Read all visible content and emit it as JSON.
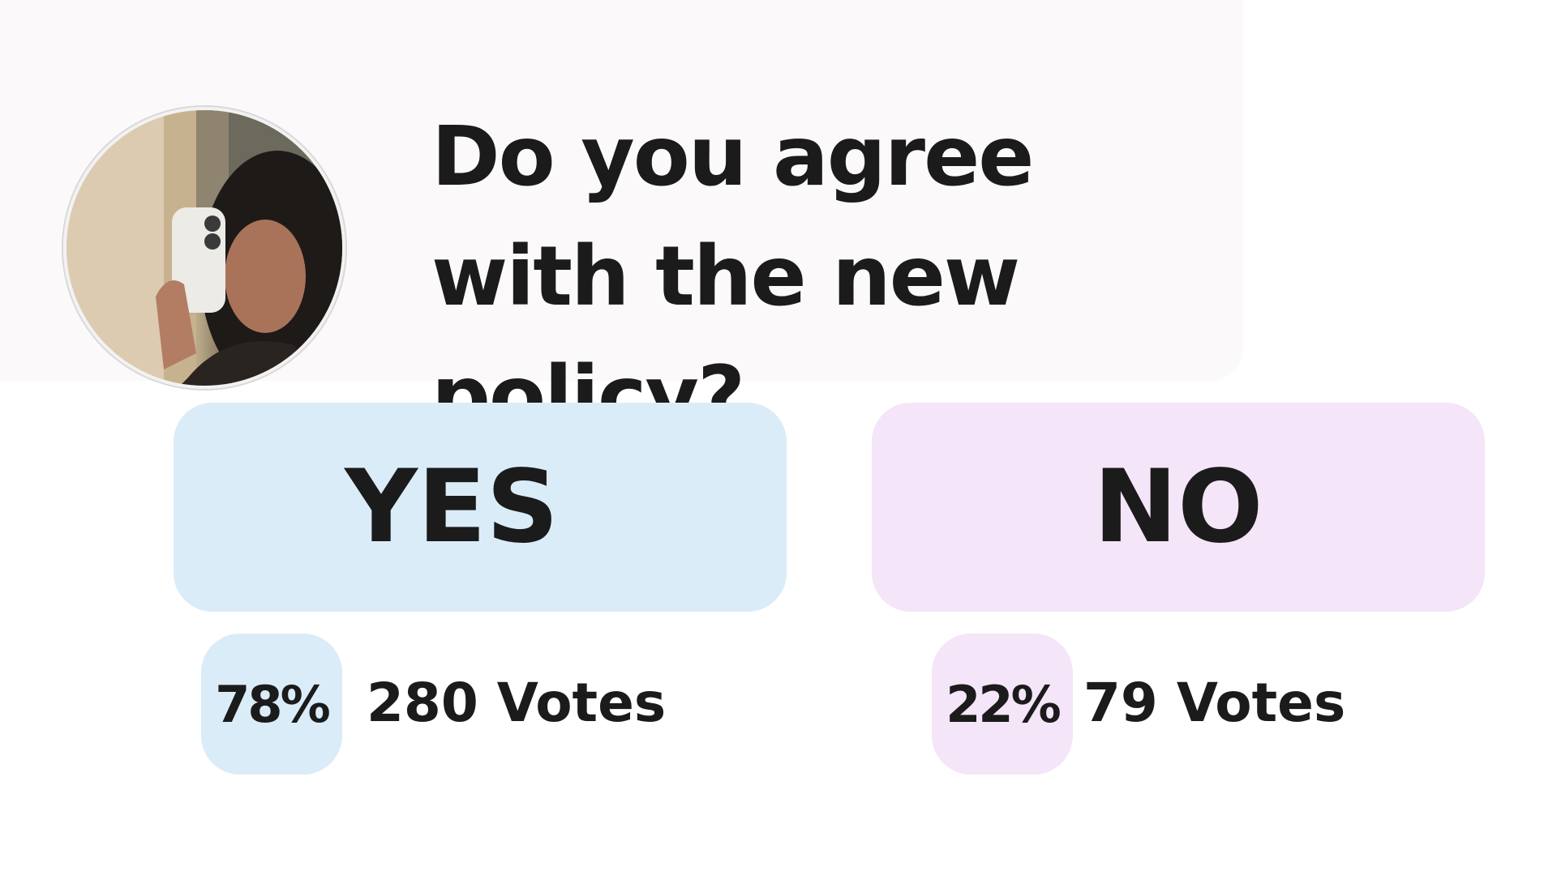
{
  "poll": {
    "question": "Do you agree with the new policy?",
    "options": [
      {
        "label": "YES",
        "percent": "78%",
        "votes": "280 Votes",
        "color": "#daecf8"
      },
      {
        "label": "NO",
        "percent": "22%",
        "votes": "79 Votes",
        "color": "#f4e5f8"
      }
    ]
  },
  "avatar": {
    "description_icon": "profile-photo"
  },
  "colors": {
    "text": "#1b1b1b",
    "header_background": "#fcf9fa",
    "yes_accent": "#daecf8",
    "no_accent": "#f4e5f8"
  }
}
